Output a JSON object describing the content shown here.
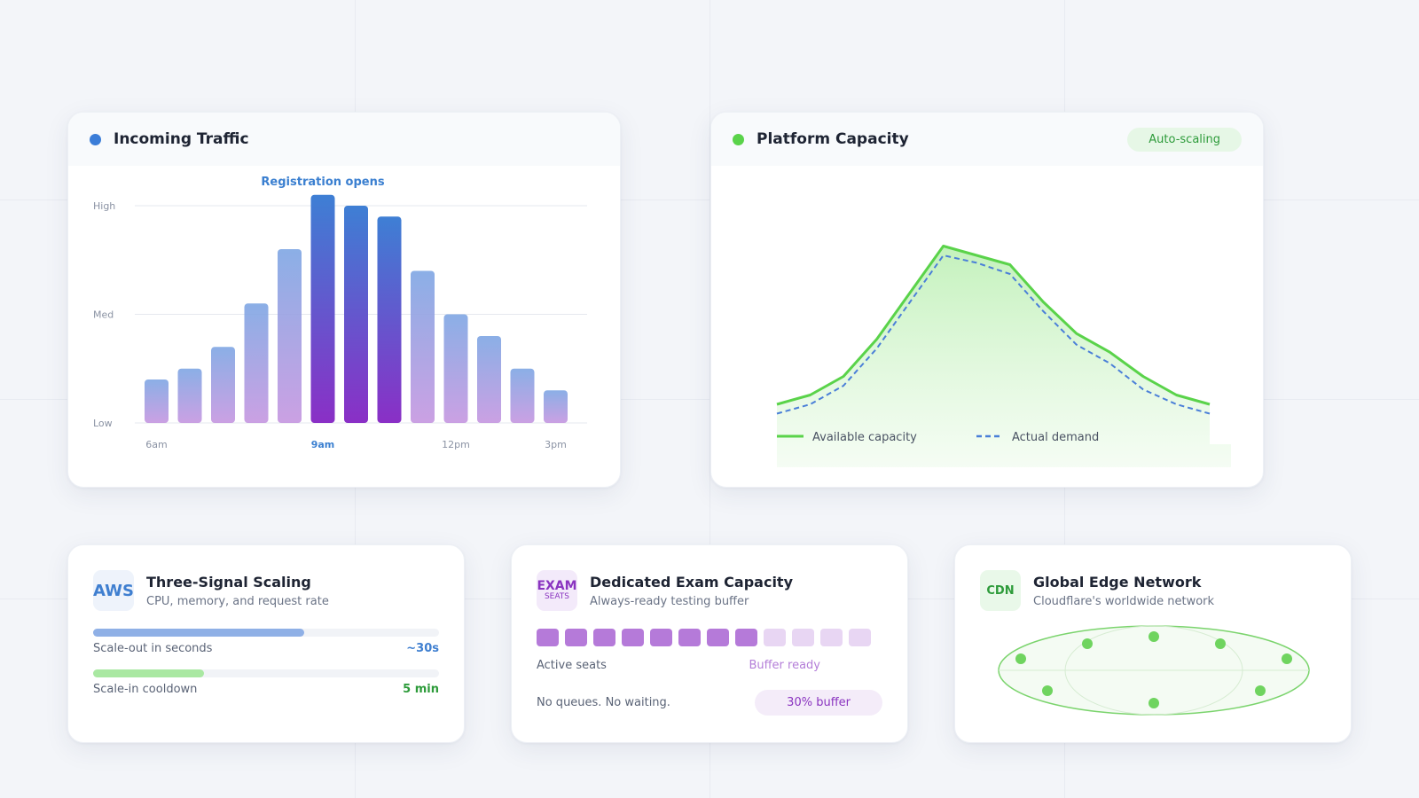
{
  "traffic": {
    "title": "Incoming Traffic",
    "dot_color": "#3b7dd8",
    "annotation": "Registration opens",
    "y_labels": [
      "High",
      "Med",
      "Low"
    ],
    "x_labels": [
      {
        "label": "6am",
        "index": 0
      },
      {
        "label": "9am",
        "index": 5,
        "highlight": true
      },
      {
        "label": "12pm",
        "index": 9
      },
      {
        "label": "3pm",
        "index": 12
      }
    ]
  },
  "chart_data": [
    {
      "type": "bar",
      "title": "",
      "categories": [
        "1",
        "2",
        "3",
        "4",
        "5",
        "6",
        "7",
        "8",
        "9",
        "10",
        "11",
        "12",
        "13"
      ],
      "values": [
        20,
        25,
        35,
        55,
        80,
        105,
        100,
        95,
        70,
        50,
        40,
        25,
        15
      ],
      "ylim": [
        0,
        100
      ],
      "y_ticks": [
        "Low",
        "Med",
        "High"
      ],
      "highlight_indices": [
        5,
        6,
        7
      ]
    },
    {
      "type": "line",
      "title": "",
      "x": [
        0,
        1,
        2,
        3,
        4,
        5,
        6,
        7,
        8,
        9,
        10,
        11,
        12,
        13
      ],
      "series": [
        {
          "name": "Available capacity",
          "values": [
            10,
            15,
            25,
            45,
            70,
            95,
            90,
            85,
            65,
            48,
            38,
            25,
            15,
            10
          ],
          "color": "#5ad34a",
          "style": "solid"
        },
        {
          "name": "Actual demand",
          "values": [
            5,
            10,
            20,
            40,
            65,
            90,
            86,
            80,
            60,
            42,
            32,
            18,
            10,
            5
          ],
          "color": "#4a7fd8",
          "style": "dashed"
        }
      ],
      "legend": "bottom-left"
    }
  ],
  "platform": {
    "title": "Platform Capacity",
    "dot_color": "#5ad34a",
    "badge": "Auto-scaling",
    "legend": [
      {
        "label": "Available capacity"
      },
      {
        "label": "Actual demand"
      }
    ]
  },
  "aws": {
    "logo": "AWS",
    "title": "Three-Signal Scaling",
    "subtitle": "CPU, memory, and request rate",
    "metrics": [
      {
        "label": "Scale-out in seconds",
        "value": "~30s",
        "fill": 0.61,
        "color": "#8fb0e6",
        "value_color": "#3f7fd0"
      },
      {
        "label": "Scale-in cooldown",
        "value": "5 min",
        "fill": 0.32,
        "color": "#a9e8a2",
        "value_color": "#2d9b3a"
      }
    ]
  },
  "exam": {
    "logo": "EXAM",
    "logo_sub": "SEATS",
    "title": "Dedicated Exam Capacity",
    "subtitle": "Always-ready testing buffer",
    "seats_active": 8,
    "seats_total": 12,
    "active_label": "Active seats",
    "buffer_label": "Buffer ready",
    "footer": "No queues. No waiting.",
    "buffer_badge": "30% buffer"
  },
  "cdn": {
    "logo": "CDN",
    "title": "Global Edge Network",
    "subtitle": "Cloudflare's worldwide network"
  }
}
